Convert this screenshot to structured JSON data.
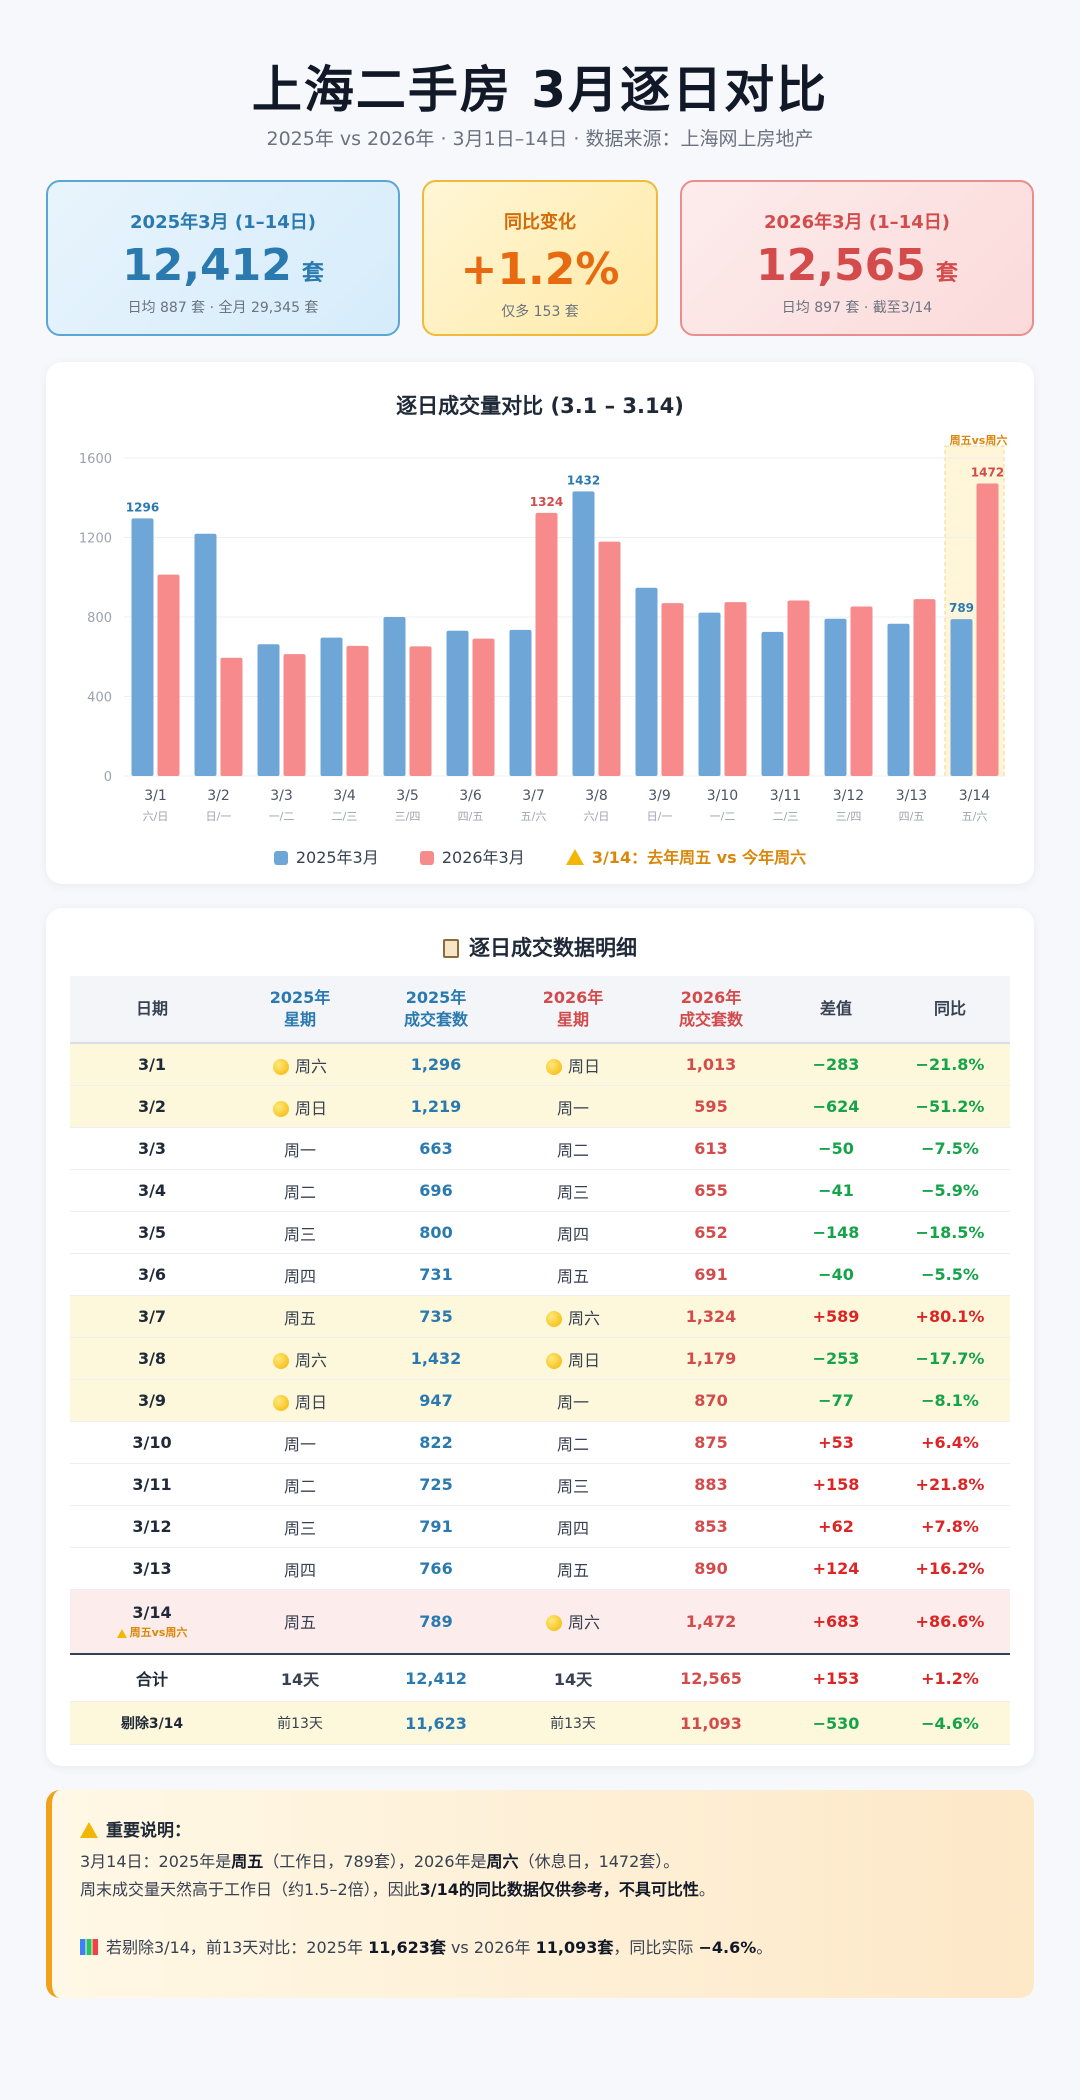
{
  "title": "上海二手房 3月逐日对比",
  "subtitle": "2025年 vs 2026年 · 3月1日–14日 · 数据来源：上海网上房地产",
  "cards": {
    "c2025": {
      "label": "2025年3月 (1–14日)",
      "value": "12,412",
      "unit": "套",
      "note": "日均 887 套 · 全月 29,345 套"
    },
    "change": {
      "label": "同比变化",
      "value": "+1.2%",
      "note": "仅多 153 套"
    },
    "c2026": {
      "label": "2026年3月 (1–14日)",
      "value": "12,565",
      "unit": "套",
      "note": "日均 897 套 · 截至3/14"
    }
  },
  "chart_title": "逐日成交量对比 (3.1 – 3.14)",
  "chart_data": {
    "type": "bar",
    "categories": [
      "3/1",
      "3/2",
      "3/3",
      "3/4",
      "3/5",
      "3/6",
      "3/7",
      "3/8",
      "3/9",
      "3/10",
      "3/11",
      "3/12",
      "3/13",
      "3/14"
    ],
    "sublabels": [
      "六/日",
      "日/一",
      "一/二",
      "二/三",
      "三/四",
      "四/五",
      "五/六",
      "六/日",
      "日/一",
      "一/二",
      "二/三",
      "三/四",
      "四/五",
      "五/六"
    ],
    "series": [
      {
        "name": "2025年3月",
        "color": "#6fa6d8",
        "values": [
          1296,
          1219,
          663,
          696,
          800,
          731,
          735,
          1432,
          947,
          822,
          725,
          791,
          766,
          789
        ]
      },
      {
        "name": "2026年3月",
        "color": "#f78a8a",
        "values": [
          1013,
          595,
          613,
          655,
          652,
          691,
          1324,
          1179,
          870,
          875,
          883,
          853,
          890,
          1472
        ]
      }
    ],
    "labeled": [
      {
        "series": 0,
        "index": 0,
        "text": "1296"
      },
      {
        "series": 1,
        "index": 6,
        "text": "1324"
      },
      {
        "series": 0,
        "index": 7,
        "text": "1432"
      },
      {
        "series": 0,
        "index": 13,
        "text": "789"
      },
      {
        "series": 1,
        "index": 13,
        "text": "1472"
      }
    ],
    "highlight_index": 13,
    "highlight_label": "周五vs周六",
    "yticks": [
      "0",
      "400",
      "800",
      "1200",
      "1600"
    ],
    "ylim": [
      0,
      1600
    ],
    "grid": true,
    "legend_placement": "bottom"
  },
  "legend": {
    "s1": "2025年3月",
    "s2": "2026年3月",
    "warn": "3/14：去年周五 vs 今年周六"
  },
  "table_title": "逐日成交数据明细",
  "table": {
    "headers": [
      "日期",
      "2025年 星期",
      "2025年 成交套数",
      "2026年 星期",
      "2026年 成交套数",
      "差值",
      "同比"
    ],
    "headers_lines": [
      [
        "日期"
      ],
      [
        "2025年",
        "星期"
      ],
      [
        "2025年",
        "成交套数"
      ],
      [
        "2026年",
        "星期"
      ],
      [
        "2026年",
        "成交套数"
      ],
      [
        "差值"
      ],
      [
        "同比"
      ]
    ],
    "rows": [
      {
        "date": "3/1",
        "w25": "周六",
        "d25": true,
        "n25": "1,296",
        "w26": "周日",
        "d26": true,
        "n26": "1,013",
        "diff": "−283",
        "pct": "−21.8%",
        "neg": true,
        "hl": true
      },
      {
        "date": "3/2",
        "w25": "周日",
        "d25": true,
        "n25": "1,219",
        "w26": "周一",
        "d26": false,
        "n26": "595",
        "diff": "−624",
        "pct": "−51.2%",
        "neg": true,
        "hl": true
      },
      {
        "date": "3/3",
        "w25": "周一",
        "d25": false,
        "n25": "663",
        "w26": "周二",
        "d26": false,
        "n26": "613",
        "diff": "−50",
        "pct": "−7.5%",
        "neg": true,
        "hl": false
      },
      {
        "date": "3/4",
        "w25": "周二",
        "d25": false,
        "n25": "696",
        "w26": "周三",
        "d26": false,
        "n26": "655",
        "diff": "−41",
        "pct": "−5.9%",
        "neg": true,
        "hl": false
      },
      {
        "date": "3/5",
        "w25": "周三",
        "d25": false,
        "n25": "800",
        "w26": "周四",
        "d26": false,
        "n26": "652",
        "diff": "−148",
        "pct": "−18.5%",
        "neg": true,
        "hl": false
      },
      {
        "date": "3/6",
        "w25": "周四",
        "d25": false,
        "n25": "731",
        "w26": "周五",
        "d26": false,
        "n26": "691",
        "diff": "−40",
        "pct": "−5.5%",
        "neg": true,
        "hl": false
      },
      {
        "date": "3/7",
        "w25": "周五",
        "d25": false,
        "n25": "735",
        "w26": "周六",
        "d26": true,
        "n26": "1,324",
        "diff": "+589",
        "pct": "+80.1%",
        "neg": false,
        "hl": true
      },
      {
        "date": "3/8",
        "w25": "周六",
        "d25": true,
        "n25": "1,432",
        "w26": "周日",
        "d26": true,
        "n26": "1,179",
        "diff": "−253",
        "pct": "−17.7%",
        "neg": true,
        "hl": true
      },
      {
        "date": "3/9",
        "w25": "周日",
        "d25": true,
        "n25": "947",
        "w26": "周一",
        "d26": false,
        "n26": "870",
        "diff": "−77",
        "pct": "−8.1%",
        "neg": true,
        "hl": true
      },
      {
        "date": "3/10",
        "w25": "周一",
        "d25": false,
        "n25": "822",
        "w26": "周二",
        "d26": false,
        "n26": "875",
        "diff": "+53",
        "pct": "+6.4%",
        "neg": false,
        "hl": false
      },
      {
        "date": "3/11",
        "w25": "周二",
        "d25": false,
        "n25": "725",
        "w26": "周三",
        "d26": false,
        "n26": "883",
        "diff": "+158",
        "pct": "+21.8%",
        "neg": false,
        "hl": false
      },
      {
        "date": "3/12",
        "w25": "周三",
        "d25": false,
        "n25": "791",
        "w26": "周四",
        "d26": false,
        "n26": "853",
        "diff": "+62",
        "pct": "+7.8%",
        "neg": false,
        "hl": false
      },
      {
        "date": "3/13",
        "w25": "周四",
        "d25": false,
        "n25": "766",
        "w26": "周五",
        "d26": false,
        "n26": "890",
        "diff": "+124",
        "pct": "+16.2%",
        "neg": false,
        "hl": false
      },
      {
        "date": "3/14",
        "sub": "周五vs周六",
        "w25": "周五",
        "d25": false,
        "n25": "789",
        "w26": "周六",
        "d26": true,
        "n26": "1,472",
        "diff": "+683",
        "pct": "+86.6%",
        "neg": false,
        "hl": false,
        "alert": true
      }
    ],
    "total": {
      "label": "合计",
      "d25": "14天",
      "n25": "12,412",
      "d26": "14天",
      "n26": "12,565",
      "diff": "+153",
      "pct": "+1.2%"
    },
    "excl": {
      "label": "剔除3/14",
      "d25": "前13天",
      "n25": "11,623",
      "d26": "前13天",
      "n26": "11,093",
      "diff": "−530",
      "pct": "−4.6%"
    }
  },
  "notice": {
    "title": "重要说明：",
    "l1a": "3月14日：2025年是",
    "l1b": "周五",
    "l1c": "（工作日，789套），2026年是",
    "l1d": "周六",
    "l1e": "（休息日，1472套）。",
    "l2a": "周末成交量天然高于工作日（约1.5–2倍），因此",
    "l2b": "3/14的同比数据仅供参考，不具可比性",
    "l2c": "。",
    "l3a": "若剔除3/14，前13天对比：2025年 ",
    "l3b": "11,623套",
    "l3c": " vs 2026年 ",
    "l3d": "11,093套",
    "l3e": "，同比实际 ",
    "l3f": "−4.6%",
    "l3g": "。"
  }
}
